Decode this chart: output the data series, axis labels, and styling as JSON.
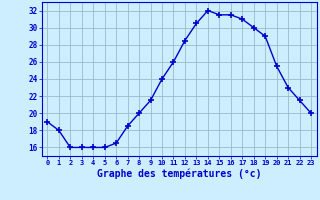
{
  "hours": [
    0,
    1,
    2,
    3,
    4,
    5,
    6,
    7,
    8,
    9,
    10,
    11,
    12,
    13,
    14,
    15,
    16,
    17,
    18,
    19,
    20,
    21,
    22,
    23
  ],
  "temps": [
    19,
    18,
    16,
    16,
    16,
    16,
    16.5,
    18.5,
    20,
    21.5,
    24,
    26,
    28.5,
    30.5,
    32,
    31.5,
    31.5,
    31,
    30,
    29,
    25.5,
    23,
    21.5,
    20
  ],
  "xlabel": "Graphe des températures (°c)",
  "xlim": [
    -0.5,
    23.5
  ],
  "ylim": [
    15,
    33
  ],
  "yticks": [
    16,
    18,
    20,
    22,
    24,
    26,
    28,
    30,
    32
  ],
  "bg_color": "#cceeff",
  "line_color": "#0000cc",
  "grid_color": "#99bbcc",
  "xlabel_color": "#0000cc",
  "tick_color": "#0000cc"
}
